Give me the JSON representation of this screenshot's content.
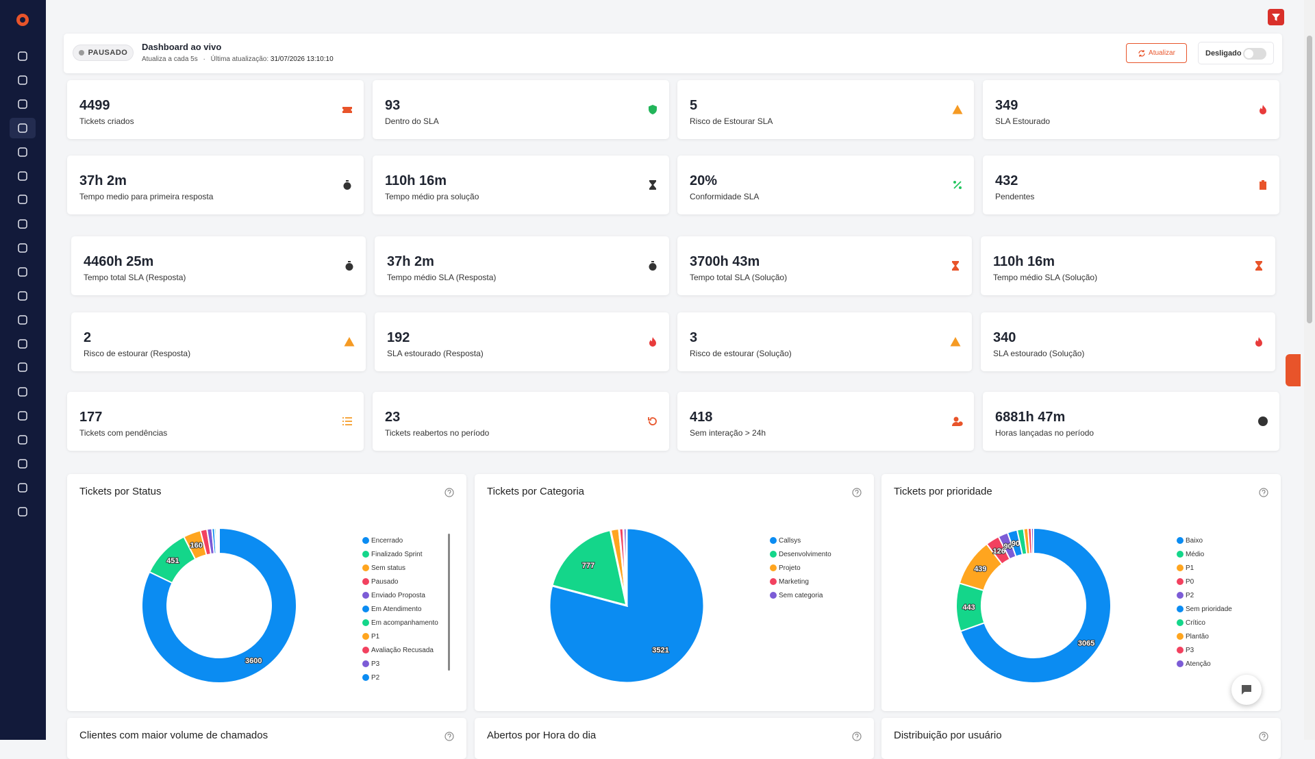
{
  "header": {
    "status": "PAUSADO",
    "title": "Dashboard ao vivo",
    "refresh": "Atualiza a cada 5s",
    "separator": "·",
    "last_update_label": "Última atualização:",
    "last_update": "31/07/2026 13:10:10",
    "button": "Atualizar",
    "toggle": "Desligado"
  },
  "kpis": [
    {
      "value": 4499,
      "label": "Tickets criados",
      "color": "#e8542a"
    },
    {
      "value": 93,
      "label": "Dentro do SLA",
      "color": "#22b55a"
    },
    {
      "value": 5,
      "label": "Risco de Estourar SLA",
      "color": "#f59a23"
    },
    {
      "value": 349,
      "label": "SLA Estourado",
      "color": "#e83b3b"
    },
    {
      "value": "37h 2m",
      "label": "Tempo medio para primeira resposta",
      "color": "#333333"
    },
    {
      "value": "110h 16m",
      "label": "Tempo médio pra solução",
      "color": "#333333"
    },
    {
      "value": "20%",
      "label": "Conformidade SLA",
      "color": "#22c55e"
    },
    {
      "value": 432,
      "label": "Pendentes",
      "color": "#e8542a"
    },
    {
      "value": "4460h 25m",
      "label": "Tempo total SLA (Resposta)",
      "color": "#333333"
    },
    {
      "value": "37h 2m",
      "label": "Tempo médio SLA (Resposta)",
      "color": "#333333"
    },
    {
      "value": "3700h 43m",
      "label": "Tempo total SLA (Solução)",
      "color": "#e8542a"
    },
    {
      "value": "110h 16m",
      "label": "Tempo médio SLA (Solução)",
      "color": "#e8542a"
    },
    {
      "value": 2,
      "label": "Risco de estourar (Resposta)",
      "color": "#f59a23"
    },
    {
      "value": 192,
      "label": "SLA estourado (Resposta)",
      "color": "#e83b3b"
    },
    {
      "value": 3,
      "label": "Risco de estourar (Solução)",
      "color": "#f59a23"
    },
    {
      "value": 340,
      "label": "SLA estourado (Solução)",
      "color": "#e83b3b"
    },
    {
      "value": 177,
      "label": "Tickets com pendências",
      "color": "#f59a23"
    },
    {
      "value": 23,
      "label": "Tickets reabertos no período",
      "color": "#e8542a"
    },
    {
      "value": 418,
      "label": "Sem interação > 24h",
      "color": "#e8542a"
    },
    {
      "value": "6881h 47m",
      "label": "Horas lançadas no período",
      "color": "#333333"
    }
  ],
  "charts": [
    {
      "title": "Tickets por Status",
      "type": "donut",
      "categories": [
        "Encerrado",
        "Finalizado Sprint",
        "Sem status",
        "Pausado",
        "Enviado Proposta",
        "Em Atendimento",
        "Em acompanhamento",
        "P1",
        "Avaliação Recusada",
        "P3",
        "P2"
      ],
      "values": [
        3600,
        451,
        160,
        60,
        45,
        25,
        15,
        10,
        8,
        5,
        3
      ],
      "colors": [
        "#0b8cf2",
        "#14d68a",
        "#ffa51f",
        "#f2415f",
        "#7c5cd6",
        "#0b8cf2",
        "#14d68a",
        "#ffa51f",
        "#f2415f",
        "#7c5cd6",
        "#0b8cf2"
      ]
    },
    {
      "title": "Tickets por Categoria",
      "type": "pie",
      "categories": [
        "Callsys",
        "Desenvolvimento",
        "Projeto",
        "Marketing",
        "Sem categoria"
      ],
      "values": [
        3521,
        777,
        80,
        40,
        30
      ],
      "colors": [
        "#0b8cf2",
        "#14d68a",
        "#ffa51f",
        "#f2415f",
        "#7c5cd6"
      ]
    },
    {
      "title": "Tickets por prioridade",
      "type": "donut",
      "categories": [
        "Baixo",
        "Médio",
        "P1",
        "P0",
        "P2",
        "Sem prioridade",
        "Crítico",
        "Plantão",
        "P3",
        "Atenção"
      ],
      "values": [
        3065,
        443,
        439,
        126,
        90,
        90,
        60,
        40,
        30,
        20
      ],
      "colors": [
        "#0b8cf2",
        "#14d68a",
        "#ffa51f",
        "#f2415f",
        "#7c5cd6",
        "#0b8cf2",
        "#14d68a",
        "#ffa51f",
        "#f2415f",
        "#7c5cd6"
      ]
    }
  ],
  "bottom_charts": [
    "Clientes com maior volume de chamados",
    "Abertos por Hora do dia",
    "Distribuição por usuário"
  ]
}
